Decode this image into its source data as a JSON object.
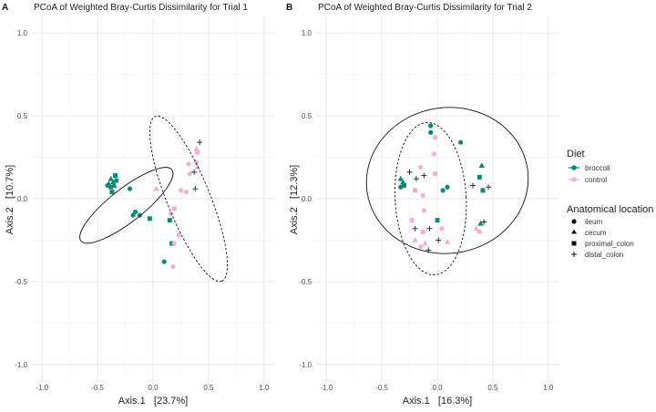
{
  "panel_labels": [
    "A",
    "B"
  ],
  "legend": {
    "diet_title": "Diet",
    "diet": [
      {
        "label": "broccoli",
        "color": "#0b8a74"
      },
      {
        "label": "control",
        "color": "#f2b0d6"
      }
    ],
    "location_title": "Anatomical location",
    "locations": [
      {
        "label": "ileum",
        "shape": "circle"
      },
      {
        "label": "cecum",
        "shape": "triangle"
      },
      {
        "label": "proximal_colon",
        "shape": "square"
      },
      {
        "label": "distal_colon",
        "shape": "plus"
      }
    ]
  },
  "chart_data": [
    {
      "type": "scatter",
      "title": "PCoA of Weighted Bray-Curtis Dissimilarity for Trial 1",
      "xlabel": "Axis.1   [23.7%]",
      "ylabel": "Axis.2   [10.7%]",
      "xlim": [
        -1.1,
        1.1
      ],
      "ylim": [
        -1.1,
        1.1
      ],
      "xticks": [
        -1.0,
        -0.5,
        0.0,
        0.5,
        1.0
      ],
      "yticks": [
        -1.0,
        -0.5,
        0.0,
        0.5,
        1.0
      ],
      "xtick_labels": [
        "-1.0",
        "-0.5",
        "0.0",
        "0.5",
        "1.0"
      ],
      "ytick_labels": [
        "-1.0",
        "-0.5",
        "0.0",
        "0.5",
        "1.0"
      ],
      "grid": true,
      "series": [
        {
          "name": "broccoli",
          "points": [
            {
              "x": -0.38,
              "y": 0.12,
              "shape": "triangle"
            },
            {
              "x": -0.36,
              "y": 0.1,
              "shape": "triangle"
            },
            {
              "x": -0.4,
              "y": 0.09,
              "shape": "triangle"
            },
            {
              "x": -0.35,
              "y": 0.08,
              "shape": "triangle"
            },
            {
              "x": -0.34,
              "y": 0.14,
              "shape": "square"
            },
            {
              "x": -0.38,
              "y": 0.07,
              "shape": "square"
            },
            {
              "x": -0.41,
              "y": 0.08,
              "shape": "circle"
            },
            {
              "x": -0.37,
              "y": 0.04,
              "shape": "square"
            },
            {
              "x": -0.33,
              "y": 0.11,
              "shape": "circle"
            },
            {
              "x": -0.21,
              "y": 0.06,
              "shape": "circle"
            },
            {
              "x": -0.16,
              "y": -0.08,
              "shape": "circle"
            },
            {
              "x": -0.18,
              "y": -0.1,
              "shape": "circle"
            },
            {
              "x": -0.12,
              "y": -0.1,
              "shape": "circle"
            },
            {
              "x": -0.03,
              "y": -0.12,
              "shape": "square"
            },
            {
              "x": 0.15,
              "y": -0.13,
              "shape": "square"
            },
            {
              "x": 0.17,
              "y": -0.27,
              "shape": "square"
            },
            {
              "x": 0.1,
              "y": -0.38,
              "shape": "circle"
            }
          ]
        },
        {
          "name": "control",
          "points": [
            {
              "x": 0.03,
              "y": 0.06,
              "shape": "triangle"
            },
            {
              "x": 0.16,
              "y": -0.09,
              "shape": "circle"
            },
            {
              "x": 0.19,
              "y": -0.06,
              "shape": "square"
            },
            {
              "x": 0.19,
              "y": -0.27,
              "shape": "circle"
            },
            {
              "x": 0.18,
              "y": -0.41,
              "shape": "circle"
            },
            {
              "x": 0.23,
              "y": -0.22,
              "shape": "circle"
            },
            {
              "x": 0.25,
              "y": 0.05,
              "shape": "circle"
            },
            {
              "x": 0.3,
              "y": 0.04,
              "shape": "circle"
            },
            {
              "x": 0.33,
              "y": 0.15,
              "shape": "circle"
            },
            {
              "x": 0.32,
              "y": 0.21,
              "shape": "circle"
            },
            {
              "x": 0.39,
              "y": 0.22,
              "shape": "circle"
            },
            {
              "x": 0.39,
              "y": 0.3,
              "shape": "triangle"
            },
            {
              "x": 0.4,
              "y": 0.28,
              "shape": "square"
            },
            {
              "x": 0.4,
              "y": 0.19,
              "shape": "triangle"
            },
            {
              "x": 0.42,
              "y": 0.34,
              "shape": "plus"
            },
            {
              "x": 0.38,
              "y": 0.06,
              "shape": "plus"
            },
            {
              "x": 0.37,
              "y": 0.16,
              "shape": "plus"
            }
          ]
        }
      ],
      "ellipses": [
        {
          "group": "broccoli",
          "cx": -0.24,
          "cy": -0.04,
          "rx": 0.52,
          "ry": 0.1,
          "angle_deg": -38,
          "dashed": false
        },
        {
          "group": "control",
          "cx": 0.32,
          "cy": 0.0,
          "rx": 0.8,
          "ry": 0.13,
          "angle_deg": 68,
          "dashed": true
        }
      ]
    },
    {
      "type": "scatter",
      "title": "PCoA of Weighted Bray-Curtis Dissimilarity for Trial 2",
      "xlabel": "Axis.1   [16.3%]",
      "ylabel": "Axis.2   [12.3%]",
      "xlim": [
        -1.1,
        1.1
      ],
      "ylim": [
        -1.1,
        1.1
      ],
      "xticks": [
        -1.0,
        -0.5,
        0.0,
        0.5,
        1.0
      ],
      "yticks": [
        -1.0,
        -0.5,
        0.0,
        0.5,
        1.0
      ],
      "xtick_labels": [
        "-1.0",
        "-0.5",
        "0.0",
        "0.5",
        "1.0"
      ],
      "ytick_labels": [
        "-1.0",
        "-0.5",
        "0.0",
        "0.5",
        "1.0"
      ],
      "grid": true,
      "series": [
        {
          "name": "broccoli",
          "points": [
            {
              "x": -0.06,
              "y": 0.44,
              "shape": "circle"
            },
            {
              "x": -0.06,
              "y": 0.4,
              "shape": "circle"
            },
            {
              "x": 0.21,
              "y": 0.34,
              "shape": "circle"
            },
            {
              "x": -0.33,
              "y": 0.12,
              "shape": "triangle"
            },
            {
              "x": -0.31,
              "y": 0.1,
              "shape": "triangle"
            },
            {
              "x": -0.3,
              "y": 0.08,
              "shape": "square"
            },
            {
              "x": -0.33,
              "y": 0.07,
              "shape": "circle"
            },
            {
              "x": -0.19,
              "y": 0.12,
              "shape": "plus"
            },
            {
              "x": -0.25,
              "y": 0.16,
              "shape": "plus"
            },
            {
              "x": 0.05,
              "y": 0.05,
              "shape": "circle"
            },
            {
              "x": 0.09,
              "y": 0.07,
              "shape": "circle"
            },
            {
              "x": 0.32,
              "y": 0.08,
              "shape": "plus"
            },
            {
              "x": 0.4,
              "y": 0.2,
              "shape": "triangle"
            },
            {
              "x": 0.38,
              "y": 0.13,
              "shape": "square"
            },
            {
              "x": 0.41,
              "y": 0.05,
              "shape": "square"
            },
            {
              "x": 0.46,
              "y": 0.07,
              "shape": "plus"
            },
            {
              "x": 0.39,
              "y": -0.15,
              "shape": "triangle"
            },
            {
              "x": 0.42,
              "y": -0.14,
              "shape": "plus"
            },
            {
              "x": 0.0,
              "y": -0.13,
              "shape": "square"
            },
            {
              "x": -0.08,
              "y": -0.31,
              "shape": "plus"
            }
          ]
        },
        {
          "name": "control",
          "points": [
            {
              "x": -0.02,
              "y": 0.37,
              "shape": "circle"
            },
            {
              "x": -0.03,
              "y": 0.27,
              "shape": "circle"
            },
            {
              "x": -0.15,
              "y": 0.19,
              "shape": "circle"
            },
            {
              "x": -0.12,
              "y": 0.14,
              "shape": "plus"
            },
            {
              "x": -0.02,
              "y": 0.15,
              "shape": "square"
            },
            {
              "x": -0.2,
              "y": 0.05,
              "shape": "square"
            },
            {
              "x": -0.13,
              "y": 0.02,
              "shape": "circle"
            },
            {
              "x": -0.12,
              "y": -0.07,
              "shape": "circle"
            },
            {
              "x": -0.23,
              "y": -0.13,
              "shape": "square"
            },
            {
              "x": -0.2,
              "y": -0.18,
              "shape": "plus"
            },
            {
              "x": -0.13,
              "y": -0.2,
              "shape": "square"
            },
            {
              "x": -0.07,
              "y": -0.18,
              "shape": "plus"
            },
            {
              "x": 0.04,
              "y": -0.18,
              "shape": "circle"
            },
            {
              "x": -0.2,
              "y": -0.25,
              "shape": "triangle"
            },
            {
              "x": -0.11,
              "y": -0.27,
              "shape": "triangle"
            },
            {
              "x": 0.09,
              "y": -0.26,
              "shape": "triangle"
            },
            {
              "x": -0.15,
              "y": -0.29,
              "shape": "circle"
            },
            {
              "x": 0.01,
              "y": -0.25,
              "shape": "plus"
            },
            {
              "x": 0.35,
              "y": -0.18,
              "shape": "triangle"
            },
            {
              "x": 0.38,
              "y": -0.2,
              "shape": "circle"
            }
          ]
        }
      ],
      "ellipses": [
        {
          "group": "broccoli",
          "cx": 0.09,
          "cy": 0.11,
          "rx": 0.73,
          "ry": 0.44,
          "angle_deg": -8,
          "dashed": false
        },
        {
          "group": "control",
          "cx": -0.06,
          "cy": 0.0,
          "rx": 0.32,
          "ry": 0.46,
          "angle_deg": -3,
          "dashed": true
        }
      ]
    }
  ]
}
